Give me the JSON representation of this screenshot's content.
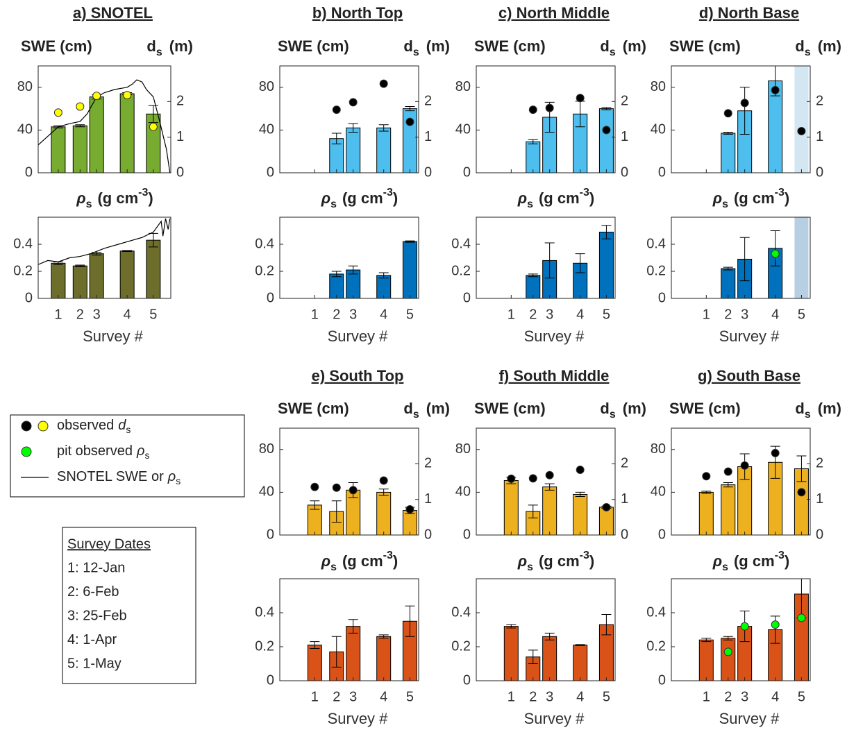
{
  "chart_data": [
    {
      "type": "bar",
      "title": "a) SNOTEL",
      "x": [
        12,
        37,
        56,
        91,
        121
      ],
      "xlim": [
        -11,
        141
      ],
      "xticks": [
        {
          "value": 12,
          "label": "1"
        },
        {
          "value": 37,
          "label": "2"
        },
        {
          "value": 56,
          "label": "3"
        },
        {
          "value": 91,
          "label": "4"
        },
        {
          "value": 121,
          "label": "5"
        }
      ],
      "xlabel": "Survey #",
      "swe": {
        "ylabel": "SWE (cm)",
        "y2label": {
          "symbol": "d",
          "sub": "s",
          "unit": "(m)"
        },
        "ylim": [
          0,
          100
        ],
        "yticks": [
          0,
          40,
          80
        ],
        "y2lim": [
          0,
          3
        ],
        "y2ticks": [
          0,
          1,
          2
        ],
        "series": [
          {
            "type": "bar",
            "color": "#77ac30",
            "values": [
              43,
              44,
              71,
              74,
              55
            ],
            "errors": [
              1,
              1,
              2,
              1,
              8
            ]
          },
          {
            "type": "line",
            "color": "#000000",
            "x": [
              -11,
              12,
              25,
              37,
              45,
              56,
              65,
              77,
              91,
              97,
              102,
              108,
              113,
              121,
              128,
              136,
              140
            ],
            "values": [
              26,
              43,
              46,
              48,
              55,
              71,
              75,
              78,
              80,
              83,
              87,
              85,
              78,
              71,
              49,
              22,
              0
            ]
          },
          {
            "type": "scatter",
            "axis": "y2",
            "color": "#ffff00",
            "values": [
              1.69,
              1.86,
              2.16,
              2.18,
              1.29
            ]
          }
        ]
      },
      "density": {
        "ylabel": {
          "symbol": "ρ",
          "sub": "s",
          "unit": "(g cm",
          "sup": "-3",
          "end": ")"
        },
        "ylim": [
          0,
          0.6
        ],
        "yticks": [
          0,
          0.2,
          0.4
        ],
        "series": [
          {
            "type": "bar",
            "color": "#6e6e2c",
            "values": [
              0.26,
              0.24,
              0.33,
              0.35,
              0.43
            ],
            "errors": [
              0.01,
              0.006,
              0.01,
              0.004,
              0.05
            ]
          },
          {
            "type": "line",
            "color": "#000000",
            "x": [
              -11,
              0,
              12,
              25,
              37,
              49,
              65,
              81,
              97,
              108,
              121,
              130,
              132,
              135,
              138,
              140
            ],
            "values": [
              0.25,
              0.28,
              0.27,
              0.3,
              0.31,
              0.33,
              0.37,
              0.4,
              0.43,
              0.45,
              0.49,
              0.57,
              0.46,
              0.59,
              0.51,
              0.59
            ]
          }
        ]
      }
    },
    {
      "type": "bar",
      "title": "b) North Top",
      "x": [
        12,
        37,
        56,
        91,
        121
      ],
      "xlim": [
        -28,
        131
      ],
      "xticks": [
        {
          "value": 12,
          "label": "1"
        },
        {
          "value": 37,
          "label": "2"
        },
        {
          "value": 56,
          "label": "3"
        },
        {
          "value": 91,
          "label": "4"
        },
        {
          "value": 121,
          "label": "5"
        }
      ],
      "xlabel": "Survey #",
      "swe": {
        "ylabel": "SWE (cm)",
        "y2label": {
          "symbol": "d",
          "sub": "s",
          "unit": "(m)"
        },
        "ylim": [
          0,
          100
        ],
        "yticks": [
          0,
          40,
          80
        ],
        "y2lim": [
          0,
          3
        ],
        "y2ticks": [
          0,
          1,
          2
        ],
        "series": [
          {
            "type": "bar",
            "color": "#4dbeee",
            "values": [
              null,
              32,
              42,
              42,
              60
            ],
            "errors": [
              null,
              5,
              4,
              3,
              2
            ]
          },
          {
            "type": "scatter",
            "axis": "y2",
            "color": "#000000",
            "values": [
              null,
              1.77,
              1.98,
              2.5,
              1.43
            ]
          }
        ]
      },
      "density": {
        "ylabel": {
          "symbol": "ρ",
          "sub": "s",
          "unit": "(g cm",
          "sup": "-3",
          "end": ")"
        },
        "ylim": [
          0,
          0.6
        ],
        "yticks": [
          0,
          0.2,
          0.4
        ],
        "series": [
          {
            "type": "bar",
            "color": "#0072bd",
            "values": [
              null,
              0.18,
              0.21,
              0.17,
              0.42
            ],
            "errors": [
              null,
              0.02,
              0.03,
              0.02,
              0.005
            ]
          }
        ]
      }
    },
    {
      "type": "bar",
      "title": "c) North Middle",
      "x": [
        12,
        37,
        56,
        91,
        121
      ],
      "xlim": [
        -28,
        131
      ],
      "xticks": [
        {
          "value": 12,
          "label": "1"
        },
        {
          "value": 37,
          "label": "2"
        },
        {
          "value": 56,
          "label": "3"
        },
        {
          "value": 91,
          "label": "4"
        },
        {
          "value": 121,
          "label": "5"
        }
      ],
      "xlabel": "Survey #",
      "swe": {
        "ylabel": "SWE (cm)",
        "y2label": {
          "symbol": "d",
          "sub": "s",
          "unit": "(m)"
        },
        "ylim": [
          0,
          100
        ],
        "yticks": [
          0,
          40,
          80
        ],
        "y2lim": [
          0,
          3
        ],
        "y2ticks": [
          0,
          1,
          2
        ],
        "series": [
          {
            "type": "bar",
            "color": "#4dbeee",
            "values": [
              null,
              29,
              52,
              55,
              60
            ],
            "errors": [
              null,
              2,
              14,
              12,
              1
            ]
          },
          {
            "type": "scatter",
            "axis": "y2",
            "color": "#000000",
            "values": [
              null,
              1.77,
              1.82,
              2.1,
              1.2
            ]
          }
        ]
      },
      "density": {
        "ylabel": {
          "symbol": "ρ",
          "sub": "s",
          "unit": "(g cm",
          "sup": "-3",
          "end": ")"
        },
        "ylim": [
          0,
          0.6
        ],
        "yticks": [
          0,
          0.2,
          0.4
        ],
        "series": [
          {
            "type": "bar",
            "color": "#0072bd",
            "values": [
              null,
              0.17,
              0.28,
              0.26,
              0.49
            ],
            "errors": [
              null,
              0.01,
              0.13,
              0.07,
              0.05
            ]
          }
        ]
      }
    },
    {
      "type": "bar",
      "title": "d) North Base",
      "x": [
        12,
        37,
        56,
        91,
        121
      ],
      "xlim": [
        -28,
        131
      ],
      "xticks": [
        {
          "value": 12,
          "label": "1"
        },
        {
          "value": 37,
          "label": "2"
        },
        {
          "value": 56,
          "label": "3"
        },
        {
          "value": 91,
          "label": "4"
        },
        {
          "value": 121,
          "label": "5"
        }
      ],
      "xlabel": "Survey #",
      "swe": {
        "ylabel": "SWE (cm)",
        "y2label": {
          "symbol": "d",
          "sub": "s",
          "unit": "(m)"
        },
        "ylim": [
          0,
          100
        ],
        "yticks": [
          0,
          40,
          80
        ],
        "y2lim": [
          0,
          3
        ],
        "y2ticks": [
          0,
          1,
          2
        ],
        "shade": {
          "x": 121,
          "color": "#d3e7f3"
        },
        "series": [
          {
            "type": "bar",
            "color": "#4dbeee",
            "values": [
              null,
              37,
              58,
              86,
              null
            ],
            "errors": [
              null,
              1,
              22,
              14,
              null
            ]
          },
          {
            "type": "scatter",
            "axis": "y2",
            "color": "#000000",
            "values": [
              null,
              1.67,
              1.96,
              2.32,
              1.17
            ]
          }
        ]
      },
      "density": {
        "ylabel": {
          "symbol": "ρ",
          "sub": "s",
          "unit": "(g cm",
          "sup": "-3",
          "end": ")"
        },
        "ylim": [
          0,
          0.6
        ],
        "yticks": [
          0,
          0.2,
          0.4
        ],
        "shade": {
          "x": 121,
          "color": "#b8cfe3"
        },
        "series": [
          {
            "type": "bar",
            "color": "#0072bd",
            "values": [
              null,
              0.22,
              0.29,
              0.37,
              null
            ],
            "errors": [
              null,
              0.01,
              0.16,
              0.13,
              null
            ]
          },
          {
            "type": "scatter",
            "color": "#00ff00",
            "values": [
              null,
              null,
              null,
              0.33,
              null
            ]
          }
        ]
      }
    },
    {
      "type": "bar",
      "title": "e) South Top",
      "x": [
        12,
        37,
        56,
        91,
        121
      ],
      "xlim": [
        -28,
        131
      ],
      "xticks": [
        {
          "value": 12,
          "label": "1"
        },
        {
          "value": 37,
          "label": "2"
        },
        {
          "value": 56,
          "label": "3"
        },
        {
          "value": 91,
          "label": "4"
        },
        {
          "value": 121,
          "label": "5"
        }
      ],
      "xlabel": "Survey #",
      "swe": {
        "ylabel": "SWE (cm)",
        "y2label": {
          "symbol": "d",
          "sub": "s",
          "unit": "(m)"
        },
        "ylim": [
          0,
          100
        ],
        "yticks": [
          0,
          40,
          80
        ],
        "y2lim": [
          0,
          3
        ],
        "y2ticks": [
          0,
          1,
          2
        ],
        "series": [
          {
            "type": "bar",
            "color": "#edb120",
            "values": [
              28,
              22,
              42,
              40,
              23
            ],
            "errors": [
              4,
              10,
              7,
              3,
              3
            ]
          },
          {
            "type": "scatter",
            "axis": "y2",
            "color": "#000000",
            "values": [
              1.35,
              1.33,
              1.26,
              1.53,
              0.72
            ]
          }
        ]
      },
      "density": {
        "ylabel": {
          "symbol": "ρ",
          "sub": "s",
          "unit": "(g cm",
          "sup": "-3",
          "end": ")"
        },
        "ylim": [
          0,
          0.6
        ],
        "yticks": [
          0,
          0.2,
          0.4
        ],
        "series": [
          {
            "type": "bar",
            "color": "#d95319",
            "values": [
              0.21,
              0.17,
              0.32,
              0.26,
              0.35
            ],
            "errors": [
              0.02,
              0.09,
              0.04,
              0.01,
              0.09
            ]
          }
        ]
      }
    },
    {
      "type": "bar",
      "title": "f) South Middle",
      "x": [
        12,
        37,
        56,
        91,
        121
      ],
      "xlim": [
        -28,
        131
      ],
      "xticks": [
        {
          "value": 12,
          "label": "1"
        },
        {
          "value": 37,
          "label": "2"
        },
        {
          "value": 56,
          "label": "3"
        },
        {
          "value": 91,
          "label": "4"
        },
        {
          "value": 121,
          "label": "5"
        }
      ],
      "xlabel": "Survey #",
      "swe": {
        "ylabel": "SWE (cm)",
        "y2label": {
          "symbol": "d",
          "sub": "s",
          "unit": "(m)"
        },
        "ylim": [
          0,
          100
        ],
        "yticks": [
          0,
          40,
          80
        ],
        "y2lim": [
          0,
          3
        ],
        "y2ticks": [
          0,
          1,
          2
        ],
        "series": [
          {
            "type": "bar",
            "color": "#edb120",
            "values": [
              51,
              22,
              45,
              38,
              26
            ],
            "errors": [
              3,
              6,
              3,
              2,
              1
            ]
          },
          {
            "type": "scatter",
            "axis": "y2",
            "color": "#000000",
            "values": [
              1.58,
              1.59,
              1.68,
              1.83,
              0.78
            ]
          }
        ]
      },
      "density": {
        "ylabel": {
          "symbol": "ρ",
          "sub": "s",
          "unit": "(g cm",
          "sup": "-3",
          "end": ")"
        },
        "ylim": [
          0,
          0.6
        ],
        "yticks": [
          0,
          0.2,
          0.4
        ],
        "series": [
          {
            "type": "bar",
            "color": "#d95319",
            "values": [
              0.32,
              0.14,
              0.26,
              0.21,
              0.33
            ],
            "errors": [
              0.01,
              0.04,
              0.02,
              0.003,
              0.06
            ]
          }
        ]
      }
    },
    {
      "type": "bar",
      "title": "g) South Base",
      "x": [
        12,
        37,
        56,
        91,
        121
      ],
      "xlim": [
        -28,
        131
      ],
      "xticks": [
        {
          "value": 12,
          "label": "1"
        },
        {
          "value": 37,
          "label": "2"
        },
        {
          "value": 56,
          "label": "3"
        },
        {
          "value": 91,
          "label": "4"
        },
        {
          "value": 121,
          "label": "5"
        }
      ],
      "xlabel": "Survey #",
      "swe": {
        "ylabel": "SWE (cm)",
        "y2label": {
          "symbol": "d",
          "sub": "s",
          "unit": "(m)"
        },
        "ylim": [
          0,
          100
        ],
        "yticks": [
          0,
          40,
          80
        ],
        "y2lim": [
          0,
          3
        ],
        "y2ticks": [
          0,
          1,
          2
        ],
        "series": [
          {
            "type": "bar",
            "color": "#edb120",
            "values": [
              40,
              47,
              64,
              68,
              62
            ],
            "errors": [
              1,
              2,
              12,
              15,
              12
            ]
          },
          {
            "type": "scatter",
            "axis": "y2",
            "color": "#000000",
            "values": [
              1.65,
              1.78,
              1.95,
              2.3,
              1.2
            ]
          }
        ]
      },
      "density": {
        "ylabel": {
          "symbol": "ρ",
          "sub": "s",
          "unit": "(g cm",
          "sup": "-3",
          "end": ")"
        },
        "ylim": [
          0,
          0.6
        ],
        "yticks": [
          0,
          0.2,
          0.4
        ],
        "series": [
          {
            "type": "bar",
            "color": "#d95319",
            "values": [
              0.24,
              0.25,
              0.32,
              0.3,
              0.51
            ],
            "errors": [
              0.01,
              0.01,
              0.09,
              0.08,
              0.14
            ]
          },
          {
            "type": "scatter",
            "color": "#00ff00",
            "values": [
              null,
              0.17,
              0.32,
              0.33,
              0.37
            ]
          }
        ]
      }
    }
  ],
  "legend": {
    "items": [
      {
        "text": "observed",
        "symbol": "d",
        "sub": "s",
        "colors": [
          "#000000",
          "#ffff00"
        ]
      },
      {
        "text": "pit observed",
        "symbol": "ρ",
        "sub": "s",
        "colors": [
          "#00ff00"
        ]
      },
      {
        "text": "SNOTEL SWE or",
        "symbol": "ρ",
        "sub": "s",
        "line": "#000000"
      }
    ]
  },
  "survey_dates": {
    "title": "Survey Dates",
    "items": [
      "1: 12-Jan",
      "2: 6-Feb",
      "3: 25-Feb",
      "4: 1-Apr",
      "5: 1-May"
    ]
  }
}
